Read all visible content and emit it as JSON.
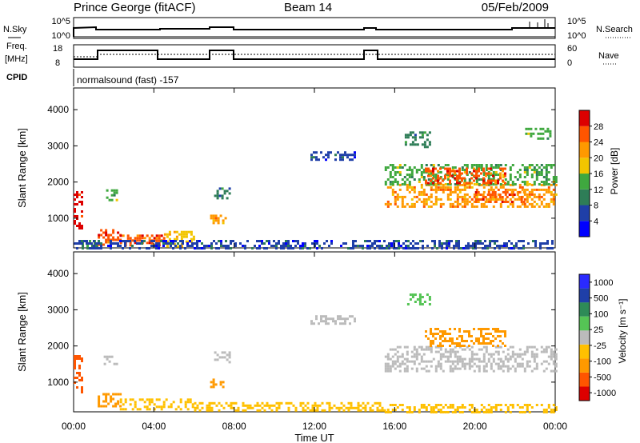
{
  "header": {
    "station": "Prince George (fitACF)",
    "beam": "Beam 14",
    "date": "05/Feb/2009"
  },
  "status_panels": {
    "nsky_label": "N.Sky",
    "nsearch_label": "N.Search",
    "freq_label_1": "Freq.",
    "freq_label_2": "[MHz]",
    "nave_label": "Nave",
    "cpid_label": "CPID",
    "cpid_text": "normalsound (fast) -157",
    "noise_ticks": [
      "10^5",
      "10^0"
    ],
    "freq_ticks": [
      "18",
      "8"
    ],
    "nave_ticks": [
      "60",
      "0"
    ]
  },
  "colors": {
    "power": [
      "#0000ff",
      "#1f3fa8",
      "#2e7d57",
      "#3fa83f",
      "#f2c500",
      "#ff9900",
      "#ff5500",
      "#dd0000"
    ],
    "velocity": [
      "#dd0000",
      "#ff5500",
      "#ff9900",
      "#ffc000",
      "#bbbbbb",
      "#55c455",
      "#2e8b57",
      "#1f3fa8",
      "#2a2aff"
    ]
  },
  "chart_data": [
    {
      "type": "heatmap",
      "name": "power",
      "xlabel": "",
      "ylabel": "Slant Range [km]",
      "x_ticks": [
        "00:00",
        "04:00",
        "08:00",
        "12:00",
        "16:00",
        "20:00",
        "00:00"
      ],
      "y_ticks": [
        "1000",
        "2000",
        "3000",
        "4000"
      ],
      "ylim": [
        180,
        4600
      ],
      "colorbar_label": "Power [dB]",
      "colorbar_ticks": [
        "4",
        "8",
        "12",
        "16",
        "20",
        "24",
        "28"
      ],
      "regions": [
        {
          "t0": 0.0,
          "t1": 0.4,
          "r0": 700,
          "r1": 1750,
          "v": 28
        },
        {
          "t0": 0.4,
          "t1": 1.2,
          "r0": 200,
          "r1": 400,
          "v": 8
        },
        {
          "t0": 1.2,
          "t1": 2.3,
          "r0": 300,
          "r1": 700,
          "v": 24
        },
        {
          "t0": 2.3,
          "t1": 4.5,
          "r0": 250,
          "r1": 550,
          "v": 26
        },
        {
          "t0": 4.5,
          "t1": 6.0,
          "r0": 250,
          "r1": 650,
          "v": 16
        },
        {
          "t0": 1.5,
          "t1": 2.1,
          "r0": 1500,
          "r1": 1800,
          "v": 12
        },
        {
          "t0": 6.8,
          "t1": 7.6,
          "r0": 900,
          "r1": 1100,
          "v": 20
        },
        {
          "t0": 7.0,
          "t1": 7.8,
          "r0": 1550,
          "r1": 1850,
          "v": 8
        },
        {
          "t0": 11.8,
          "t1": 14.0,
          "r0": 2650,
          "r1": 2850,
          "v": 6
        },
        {
          "t0": 15.5,
          "t1": 24.0,
          "r0": 1300,
          "r1": 1950,
          "v": 20
        },
        {
          "t0": 15.5,
          "t1": 24.0,
          "r0": 1950,
          "r1": 2500,
          "v": 14
        },
        {
          "t0": 17.5,
          "t1": 21.5,
          "r0": 2000,
          "r1": 2400,
          "v": 24
        },
        {
          "t0": 20.0,
          "t1": 22.5,
          "r0": 1450,
          "r1": 1750,
          "v": 26
        },
        {
          "t0": 16.5,
          "t1": 17.8,
          "r0": 3000,
          "r1": 3400,
          "v": 8
        },
        {
          "t0": 22.5,
          "t1": 23.8,
          "r0": 3200,
          "r1": 3500,
          "v": 12
        },
        {
          "t0": 0.0,
          "t1": 24.0,
          "r0": 180,
          "r1": 400,
          "v": 6
        }
      ]
    },
    {
      "type": "heatmap",
      "name": "velocity",
      "xlabel": "Time UT",
      "ylabel": "Slant Range [km]",
      "x_ticks": [
        "00:00",
        "04:00",
        "08:00",
        "12:00",
        "16:00",
        "20:00",
        "00:00"
      ],
      "y_ticks": [
        "1000",
        "2000",
        "3000",
        "4000"
      ],
      "ylim": [
        180,
        4600
      ],
      "colorbar_label": "Velocity [m s⁻¹]",
      "colorbar_ticks": [
        "1000",
        "500",
        "100",
        "25",
        "-25",
        "-100",
        "-500",
        "-1000"
      ],
      "regions": [
        {
          "t0": 0.0,
          "t1": 0.4,
          "r0": 700,
          "r1": 1750,
          "v": -500
        },
        {
          "t0": 1.2,
          "t1": 2.3,
          "r0": 350,
          "r1": 700,
          "v": -100
        },
        {
          "t0": 2.3,
          "t1": 6.0,
          "r0": 250,
          "r1": 550,
          "v": -60
        },
        {
          "t0": 1.5,
          "t1": 2.1,
          "r0": 1500,
          "r1": 1800,
          "v": 0
        },
        {
          "t0": 6.8,
          "t1": 7.6,
          "r0": 900,
          "r1": 1100,
          "v": -100
        },
        {
          "t0": 7.0,
          "t1": 7.8,
          "r0": 1550,
          "r1": 1850,
          "v": 0
        },
        {
          "t0": 11.8,
          "t1": 14.0,
          "r0": 2650,
          "r1": 2850,
          "v": 0
        },
        {
          "t0": 15.5,
          "t1": 24.0,
          "r0": 1300,
          "r1": 2000,
          "v": 0
        },
        {
          "t0": 17.5,
          "t1": 21.5,
          "r0": 2000,
          "r1": 2500,
          "v": -200
        },
        {
          "t0": 16.5,
          "t1": 17.8,
          "r0": 3150,
          "r1": 3450,
          "v": 50
        },
        {
          "t0": 6.0,
          "t1": 15.5,
          "r0": 200,
          "r1": 450,
          "v": -60
        },
        {
          "t0": 15.5,
          "t1": 24.0,
          "r0": 200,
          "r1": 400,
          "v": -60
        }
      ]
    }
  ]
}
